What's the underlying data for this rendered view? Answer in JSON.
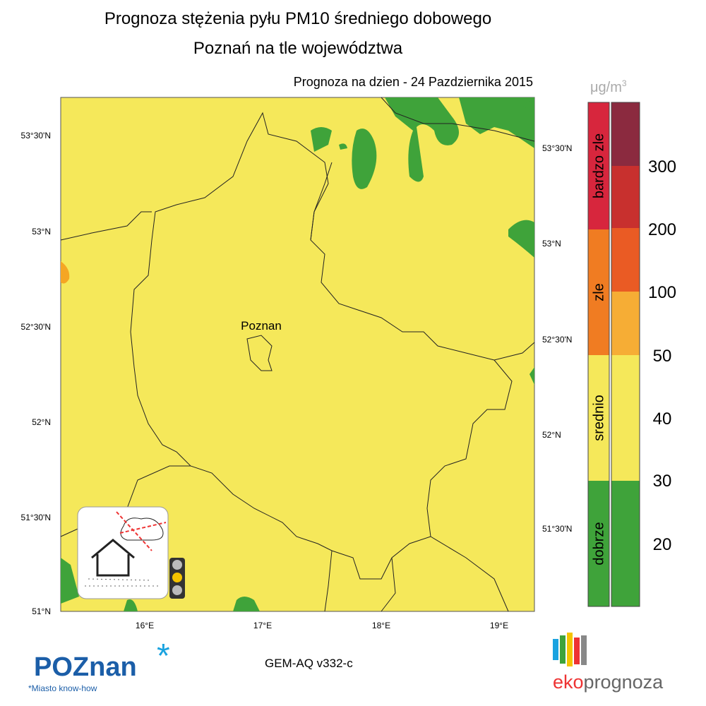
{
  "header": {
    "title": "Prognoza stężenia pyłu PM10 średniego dobowego",
    "subtitle": "Poznań na tle województwa",
    "date_label": "Prognoza na dzien -  24 Pazdziernika 2015"
  },
  "map": {
    "city_label": "Poznan",
    "lat_ticks_left": [
      "53°30'N",
      "53°N",
      "52°30'N",
      "52°N",
      "51°30'N",
      "51°N"
    ],
    "lat_ticks_right": [
      "53°30'N",
      "53°N",
      "52°30'N",
      "52°N",
      "51°30'N"
    ],
    "lon_ticks": [
      "16°E",
      "17°E",
      "18°E",
      "19°E"
    ]
  },
  "legend": {
    "unit": {
      "base": "μg/m",
      "exponent": "3"
    },
    "classes": [
      "bardzo zle",
      "zle",
      "srednio",
      "dobrze"
    ],
    "thresholds": [
      "300",
      "200",
      "100",
      "50",
      "40",
      "30",
      "20"
    ]
  },
  "footer": {
    "logo_left": "POZnan",
    "logo_left_star": "*",
    "tagline": "*Miasto know-how",
    "model": "GEM-AQ v332-c",
    "logo_right_prefix": "eko",
    "logo_right_suffix": "prognoza"
  }
}
